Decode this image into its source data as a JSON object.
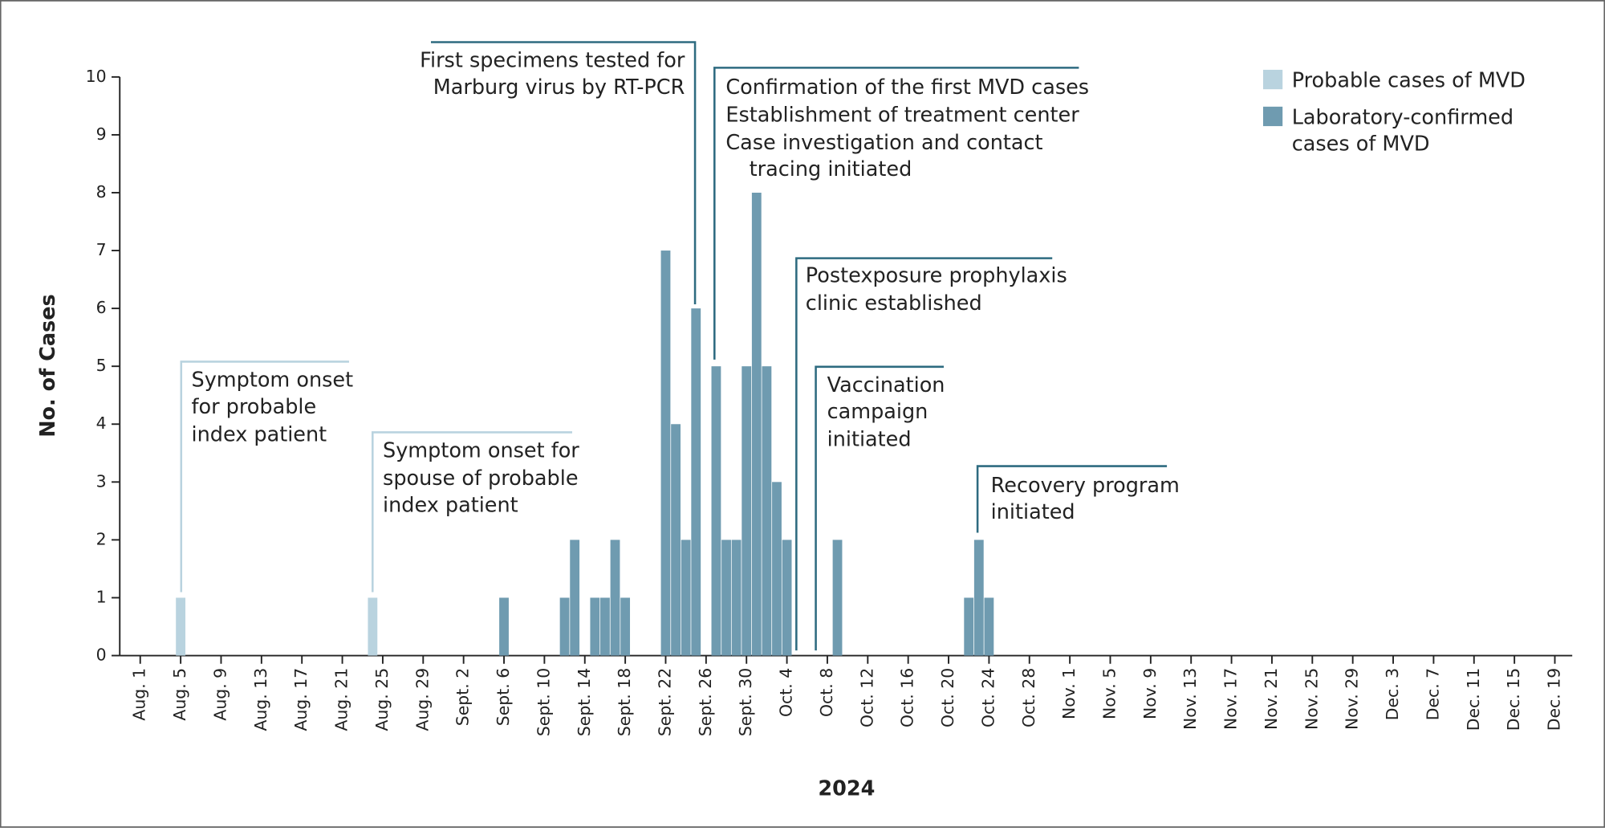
{
  "chart_data": {
    "type": "bar",
    "stacked": true,
    "y_label": "No. of Cases",
    "x_label": "2024",
    "ylim": [
      0,
      10
    ],
    "yticks": [
      0,
      1,
      2,
      3,
      4,
      5,
      6,
      7,
      8,
      9,
      10
    ],
    "grid": false,
    "legend": "top-right",
    "categories": [
      "Aug. 1",
      null,
      null,
      null,
      "Aug. 5",
      null,
      null,
      null,
      "Aug. 9",
      null,
      null,
      null,
      "Aug. 13",
      null,
      null,
      null,
      "Aug. 17",
      null,
      null,
      null,
      "Aug. 21",
      null,
      null,
      null,
      "Aug. 25",
      null,
      null,
      null,
      "Aug. 29",
      null,
      null,
      null,
      "Sept. 2",
      null,
      null,
      null,
      "Sept. 6",
      null,
      null,
      null,
      "Sept. 10",
      null,
      null,
      null,
      "Sept. 14",
      null,
      null,
      null,
      "Sept. 18",
      null,
      null,
      null,
      "Sept. 22",
      null,
      null,
      null,
      "Sept. 26",
      null,
      null,
      null,
      "Sept. 30",
      null,
      null,
      null,
      "Oct. 4",
      null,
      null,
      null,
      "Oct. 8",
      null,
      null,
      null,
      "Oct. 12",
      null,
      null,
      null,
      "Oct. 16",
      null,
      null,
      null,
      "Oct. 20",
      null,
      null,
      null,
      "Oct. 24",
      null,
      null,
      null,
      "Oct. 28",
      null,
      null,
      null,
      "Nov. 1",
      null,
      null,
      null,
      "Nov. 5",
      null,
      null,
      null,
      "Nov. 9",
      null,
      null,
      null,
      "Nov. 13",
      null,
      null,
      null,
      "Nov. 17",
      null,
      null,
      null,
      "Nov. 21",
      null,
      null,
      null,
      "Nov. 25",
      null,
      null,
      null,
      "Nov. 29",
      null,
      null,
      null,
      "Dec. 3",
      null,
      null,
      null,
      "Dec. 7",
      null,
      null,
      null,
      "Dec. 11",
      null,
      null,
      null,
      "Dec. 15",
      null,
      null,
      null,
      "Dec. 19"
    ],
    "series": [
      {
        "name": "Probable cases of MVD",
        "color": "#b9d3df",
        "values": [
          0,
          0,
          0,
          0,
          1,
          0,
          0,
          0,
          0,
          0,
          0,
          0,
          0,
          0,
          0,
          0,
          0,
          0,
          0,
          0,
          0,
          0,
          0,
          1,
          0,
          0,
          0,
          0,
          0,
          0,
          0,
          0,
          0,
          0,
          0,
          0,
          0,
          0,
          0,
          0,
          0,
          0,
          0,
          0,
          0,
          0,
          0,
          0,
          0,
          0,
          0,
          0,
          0,
          0,
          0,
          0,
          0,
          0,
          0,
          0,
          0,
          0,
          0,
          0,
          0,
          0,
          0,
          0,
          0,
          0,
          0,
          0,
          0,
          0,
          0,
          0,
          0,
          0,
          0,
          0,
          0,
          0,
          0,
          0,
          0,
          0,
          0,
          0,
          0,
          0,
          0,
          0,
          0,
          0,
          0,
          0,
          0,
          0,
          0,
          0,
          0,
          0,
          0,
          0,
          0,
          0,
          0,
          0,
          0,
          0,
          0,
          0,
          0,
          0,
          0,
          0,
          0,
          0,
          0,
          0,
          0,
          0,
          0,
          0,
          0,
          0,
          0,
          0,
          0,
          0,
          0,
          0,
          0,
          0,
          0,
          0,
          0,
          0,
          0,
          0,
          0
        ]
      },
      {
        "name": "Laboratory-confirmed cases of MVD",
        "color": "#6f9bb0",
        "values": [
          0,
          0,
          0,
          0,
          0,
          0,
          0,
          0,
          0,
          0,
          0,
          0,
          0,
          0,
          0,
          0,
          0,
          0,
          0,
          0,
          0,
          0,
          0,
          0,
          0,
          0,
          0,
          0,
          0,
          0,
          0,
          0,
          0,
          0,
          0,
          0,
          1,
          0,
          0,
          0,
          0,
          0,
          1,
          2,
          0,
          1,
          1,
          2,
          1,
          0,
          0,
          0,
          7,
          4,
          2,
          6,
          0,
          5,
          2,
          2,
          5,
          8,
          5,
          3,
          2,
          0,
          0,
          0,
          0,
          2,
          0,
          0,
          0,
          0,
          0,
          0,
          0,
          0,
          0,
          0,
          0,
          0,
          1,
          2,
          1,
          0,
          0,
          0,
          0,
          0,
          0,
          0,
          0,
          0,
          0,
          0,
          0,
          0,
          0,
          0,
          0,
          0,
          0,
          0,
          0,
          0,
          0,
          0,
          0,
          0,
          0,
          0,
          0,
          0,
          0,
          0,
          0,
          0,
          0,
          0,
          0,
          0,
          0,
          0,
          0,
          0,
          0,
          0,
          0,
          0,
          0,
          0,
          0,
          0,
          0,
          0,
          0,
          0,
          0,
          0,
          0
        ]
      }
    ],
    "annotations": [
      {
        "text": [
          "Symptom onset",
          "for probable",
          "index patient"
        ],
        "color": "#b9d3df"
      },
      {
        "text": [
          "Symptom onset for",
          "spouse of probable",
          "index patient"
        ],
        "color": "#b9d3df"
      },
      {
        "text": [
          "First specimens tested for",
          "Marburg virus by RT-PCR"
        ],
        "color": "#2e6b80"
      },
      {
        "text": [
          "Confirmation of the first MVD cases",
          "Establishment of treatment center",
          "Case investigation and contact",
          "tracing initiated"
        ],
        "color": "#2e6b80"
      },
      {
        "text": [
          "Postexposure prophylaxis",
          "clinic established"
        ],
        "color": "#2e6b80"
      },
      {
        "text": [
          "Vaccination",
          "campaign",
          "initiated"
        ],
        "color": "#2e6b80"
      },
      {
        "text": [
          "Recovery program",
          "initiated"
        ],
        "color": "#2e6b80"
      }
    ]
  }
}
